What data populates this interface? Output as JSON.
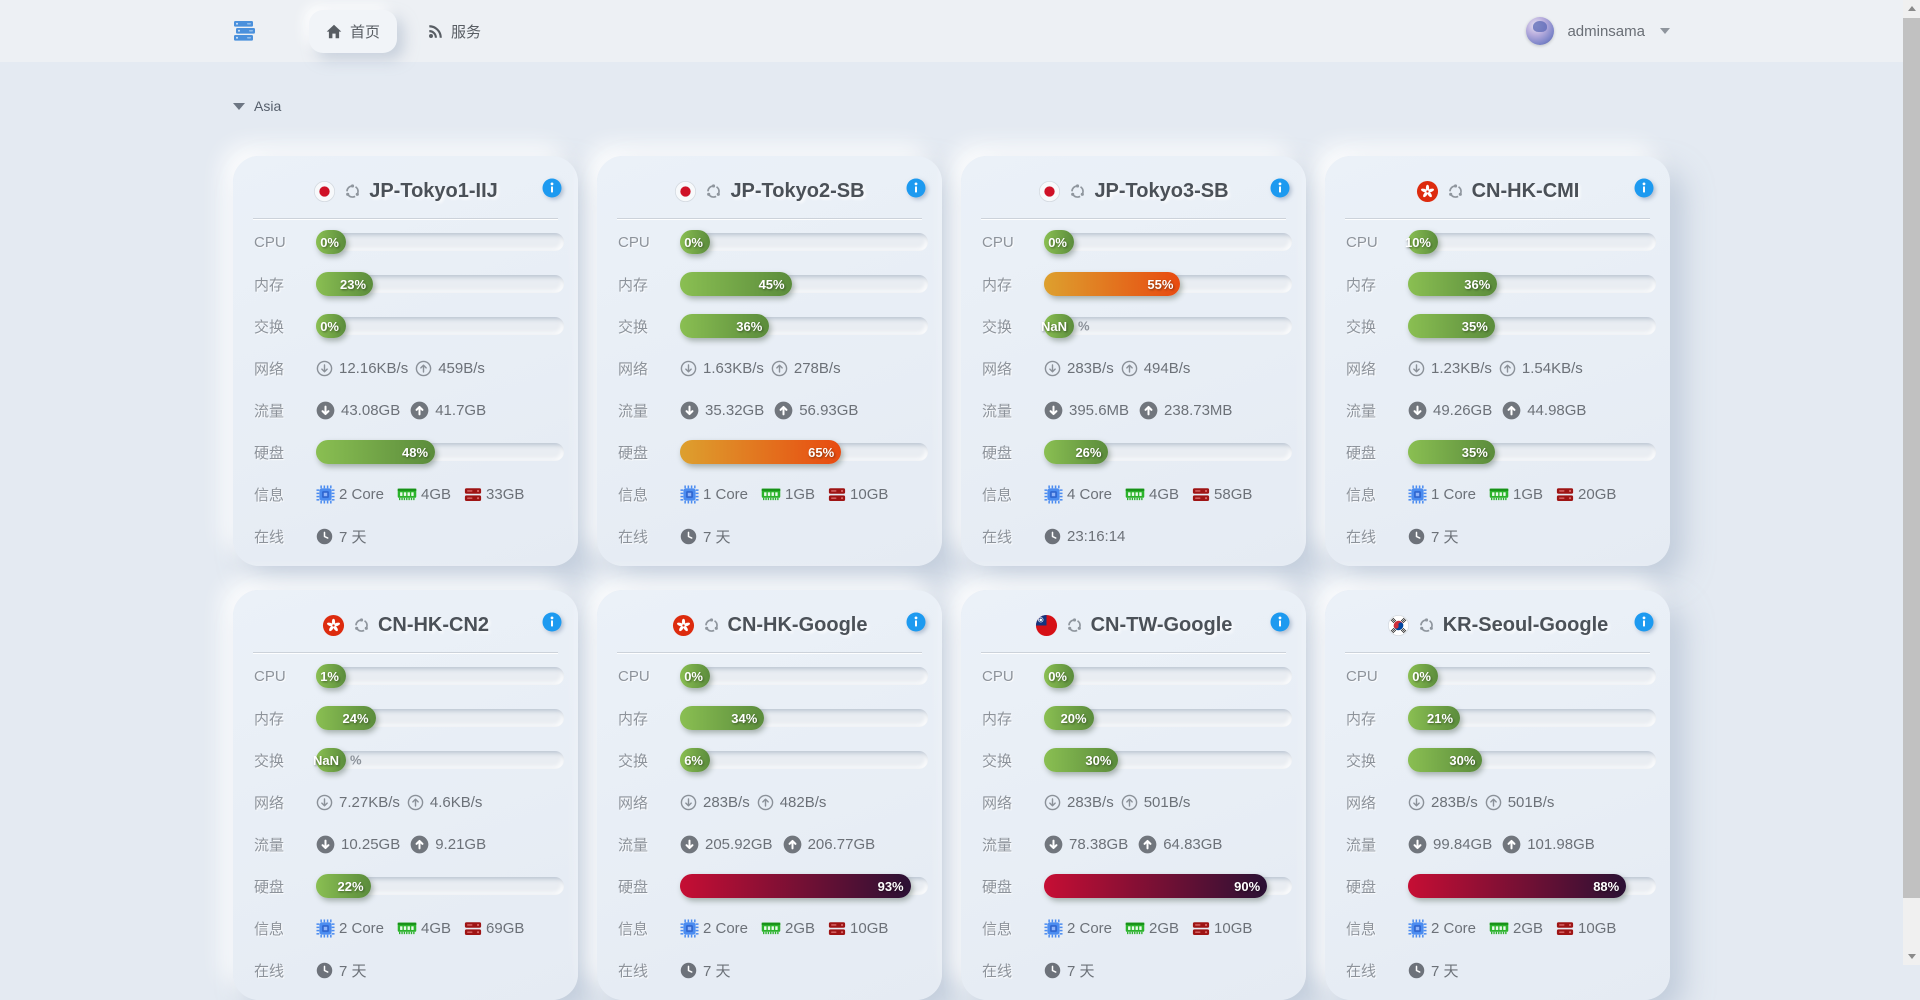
{
  "navbar": {
    "brand_icon": "server-stack",
    "tabs": [
      {
        "label": "首页",
        "icon": "home",
        "active": true
      },
      {
        "label": "服务",
        "icon": "rss",
        "active": false
      }
    ],
    "user": {
      "name": "adminsama"
    }
  },
  "section": {
    "title": "Asia"
  },
  "row_labels": {
    "cpu": "CPU",
    "memory": "内存",
    "swap": "交换",
    "network": "网络",
    "traffic": "流量",
    "disk": "硬盘",
    "info": "信息",
    "online": "在线"
  },
  "colors": {
    "bar_green": [
      "#8abf52",
      "#5b8c3c"
    ],
    "bar_orange": [
      "#dda02e",
      "#e84a10"
    ],
    "bar_red": [
      "#c60e34",
      "#2b1134"
    ],
    "info_icon_blue": "#1d9af0",
    "brand_blue": "#4a90dc",
    "cpu_chip_blue": "#4b8cf0",
    "ram_green": "#2bb32b",
    "disk_red": "#9e1414"
  },
  "servers": [
    {
      "name": "JP-Tokyo1-IIJ",
      "flag": "jp",
      "os": "ubuntu",
      "cpu_pct": 0,
      "mem_pct": 23,
      "swap_pct": 0,
      "net_down": "12.16KB/s",
      "net_up": "459B/s",
      "traffic_down": "43.08GB",
      "traffic_up": "41.7GB",
      "disk_pct": 48,
      "cores": "2 Core",
      "ram": "4GB",
      "disk_total": "33GB",
      "online": "7 天"
    },
    {
      "name": "JP-Tokyo2-SB",
      "flag": "jp",
      "os": "ubuntu",
      "cpu_pct": 0,
      "mem_pct": 45,
      "swap_pct": 36,
      "net_down": "1.63KB/s",
      "net_up": "278B/s",
      "traffic_down": "35.32GB",
      "traffic_up": "56.93GB",
      "disk_pct": 65,
      "cores": "1 Core",
      "ram": "1GB",
      "disk_total": "10GB",
      "online": "7 天"
    },
    {
      "name": "JP-Tokyo3-SB",
      "flag": "jp",
      "os": "ubuntu",
      "cpu_pct": 0,
      "mem_pct": 55,
      "swap_pct": "NaN",
      "net_down": "283B/s",
      "net_up": "494B/s",
      "traffic_down": "395.6MB",
      "traffic_up": "238.73MB",
      "disk_pct": 26,
      "cores": "4 Core",
      "ram": "4GB",
      "disk_total": "58GB",
      "online": "23:16:14"
    },
    {
      "name": "CN-HK-CMI",
      "flag": "hk",
      "os": "ubuntu",
      "cpu_pct": 10,
      "mem_pct": 36,
      "swap_pct": 35,
      "net_down": "1.23KB/s",
      "net_up": "1.54KB/s",
      "traffic_down": "49.26GB",
      "traffic_up": "44.98GB",
      "disk_pct": 35,
      "cores": "1 Core",
      "ram": "1GB",
      "disk_total": "20GB",
      "online": "7 天"
    },
    {
      "name": "CN-HK-CN2",
      "flag": "hk",
      "os": "ubuntu",
      "cpu_pct": 1,
      "mem_pct": 24,
      "swap_pct": "NaN",
      "net_down": "7.27KB/s",
      "net_up": "4.6KB/s",
      "traffic_down": "10.25GB",
      "traffic_up": "9.21GB",
      "disk_pct": 22,
      "cores": "2 Core",
      "ram": "4GB",
      "disk_total": "69GB",
      "online": "7 天"
    },
    {
      "name": "CN-HK-Google",
      "flag": "hk",
      "os": "ubuntu",
      "cpu_pct": 0,
      "mem_pct": 34,
      "swap_pct": 6,
      "net_down": "283B/s",
      "net_up": "482B/s",
      "traffic_down": "205.92GB",
      "traffic_up": "206.77GB",
      "disk_pct": 93,
      "cores": "2 Core",
      "ram": "2GB",
      "disk_total": "10GB",
      "online": "7 天"
    },
    {
      "name": "CN-TW-Google",
      "flag": "tw",
      "os": "ubuntu",
      "cpu_pct": 0,
      "mem_pct": 20,
      "swap_pct": 30,
      "net_down": "283B/s",
      "net_up": "501B/s",
      "traffic_down": "78.38GB",
      "traffic_up": "64.83GB",
      "disk_pct": 90,
      "cores": "2 Core",
      "ram": "2GB",
      "disk_total": "10GB",
      "online": "7 天"
    },
    {
      "name": "KR-Seoul-Google",
      "flag": "kr",
      "os": "ubuntu",
      "cpu_pct": 0,
      "mem_pct": 21,
      "swap_pct": 30,
      "net_down": "283B/s",
      "net_up": "501B/s",
      "traffic_down": "99.84GB",
      "traffic_up": "101.98GB",
      "disk_pct": 88,
      "cores": "2 Core",
      "ram": "2GB",
      "disk_total": "10GB",
      "online": "7 天"
    }
  ]
}
